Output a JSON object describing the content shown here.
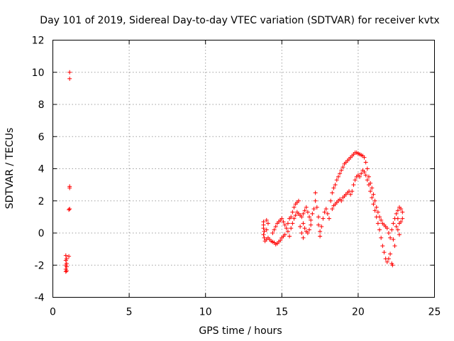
{
  "chart_data": {
    "type": "scatter",
    "title": "Day 101 of 2019, Sidereal Day-to-day VTEC variation (SDTVAR) for receiver kvtx",
    "xlabel": "GPS time / hours",
    "ylabel": "SDTVAR / TECUs",
    "xlim": [
      0,
      25
    ],
    "ylim": [
      -4,
      12
    ],
    "xticks": [
      "0",
      "5",
      "10",
      "15",
      "20",
      "25"
    ],
    "yticks": [
      "-4",
      "-2",
      "0",
      "2",
      "4",
      "6",
      "8",
      "10",
      "12"
    ],
    "grid": true,
    "marker": "+",
    "color": "#ff0000",
    "series": [
      {
        "name": "SDTVAR",
        "points": [
          [
            1.1,
            10.0
          ],
          [
            1.1,
            9.6
          ],
          [
            1.1,
            2.9
          ],
          [
            1.1,
            2.8
          ],
          [
            1.1,
            1.5
          ],
          [
            1.05,
            1.45
          ],
          [
            0.85,
            -1.4
          ],
          [
            1.05,
            -1.45
          ],
          [
            0.9,
            -1.6
          ],
          [
            0.85,
            -1.7
          ],
          [
            0.9,
            -1.9
          ],
          [
            0.85,
            -2.0
          ],
          [
            0.9,
            -2.1
          ],
          [
            0.85,
            -2.25
          ],
          [
            0.9,
            -2.35
          ],
          [
            0.85,
            -2.4
          ],
          [
            13.8,
            0.7
          ],
          [
            13.8,
            0.5
          ],
          [
            13.8,
            0.3
          ],
          [
            13.85,
            0.1
          ],
          [
            13.8,
            -0.1
          ],
          [
            13.85,
            -0.3
          ],
          [
            13.9,
            -0.5
          ],
          [
            14.0,
            0.8
          ],
          [
            14.0,
            0.2
          ],
          [
            14.0,
            -0.4
          ],
          [
            14.1,
            0.6
          ],
          [
            14.1,
            -0.3
          ],
          [
            14.2,
            -0.4
          ],
          [
            14.3,
            -0.5
          ],
          [
            14.4,
            -0.55
          ],
          [
            14.5,
            -0.6
          ],
          [
            14.6,
            -0.7
          ],
          [
            14.7,
            -0.65
          ],
          [
            14.8,
            -0.55
          ],
          [
            14.9,
            -0.45
          ],
          [
            15.0,
            -0.3
          ],
          [
            15.1,
            -0.2
          ],
          [
            15.2,
            -0.1
          ],
          [
            14.4,
            0.0
          ],
          [
            14.5,
            0.2
          ],
          [
            14.6,
            0.4
          ],
          [
            14.7,
            0.6
          ],
          [
            14.8,
            0.7
          ],
          [
            14.9,
            0.8
          ],
          [
            15.0,
            0.9
          ],
          [
            15.1,
            0.7
          ],
          [
            15.2,
            0.5
          ],
          [
            15.3,
            0.3
          ],
          [
            15.4,
            0.6
          ],
          [
            15.5,
            0.9
          ],
          [
            15.6,
            1.0
          ],
          [
            15.7,
            1.3
          ],
          [
            15.8,
            1.6
          ],
          [
            15.9,
            1.8
          ],
          [
            16.0,
            1.9
          ],
          [
            16.1,
            2.0
          ],
          [
            15.4,
            0.1
          ],
          [
            15.5,
            -0.2
          ],
          [
            15.6,
            0.3
          ],
          [
            15.7,
            0.6
          ],
          [
            15.8,
            0.9
          ],
          [
            15.9,
            1.1
          ],
          [
            16.0,
            1.3
          ],
          [
            16.1,
            1.2
          ],
          [
            16.2,
            1.1
          ],
          [
            16.3,
            1.0
          ],
          [
            16.4,
            1.2
          ],
          [
            16.5,
            1.4
          ],
          [
            16.6,
            1.6
          ],
          [
            16.7,
            1.3
          ],
          [
            16.8,
            1.0
          ],
          [
            16.9,
            0.8
          ],
          [
            16.4,
            0.6
          ],
          [
            16.5,
            0.3
          ],
          [
            16.6,
            0.1
          ],
          [
            16.7,
            0.0
          ],
          [
            16.8,
            0.2
          ],
          [
            16.9,
            0.5
          ],
          [
            17.0,
            1.2
          ],
          [
            17.1,
            1.5
          ],
          [
            17.2,
            2.0
          ],
          [
            17.2,
            2.5
          ],
          [
            17.3,
            1.6
          ],
          [
            17.4,
            1.0
          ],
          [
            17.4,
            0.5
          ],
          [
            17.5,
            0.1
          ],
          [
            17.5,
            -0.2
          ],
          [
            17.6,
            0.4
          ],
          [
            17.7,
            0.9
          ],
          [
            17.8,
            1.3
          ],
          [
            17.9,
            1.5
          ],
          [
            18.0,
            1.2
          ],
          [
            18.1,
            0.9
          ],
          [
            16.2,
            0.4
          ],
          [
            16.3,
            0.0
          ],
          [
            16.4,
            -0.3
          ],
          [
            18.2,
            2.0
          ],
          [
            18.3,
            2.5
          ],
          [
            18.4,
            2.8
          ],
          [
            18.5,
            3.0
          ],
          [
            18.6,
            3.3
          ],
          [
            18.7,
            3.5
          ],
          [
            18.8,
            3.7
          ],
          [
            18.9,
            3.9
          ],
          [
            19.0,
            4.1
          ],
          [
            19.1,
            4.3
          ],
          [
            19.2,
            4.4
          ],
          [
            19.3,
            4.5
          ],
          [
            19.4,
            4.6
          ],
          [
            19.5,
            4.7
          ],
          [
            19.6,
            4.8
          ],
          [
            19.7,
            4.9
          ],
          [
            19.8,
            5.0
          ],
          [
            19.9,
            5.0
          ],
          [
            20.0,
            4.95
          ],
          [
            20.1,
            4.9
          ],
          [
            20.2,
            4.85
          ],
          [
            20.3,
            4.8
          ],
          [
            18.3,
            1.5
          ],
          [
            18.4,
            1.7
          ],
          [
            18.5,
            1.8
          ],
          [
            18.6,
            1.9
          ],
          [
            18.7,
            2.0
          ],
          [
            18.8,
            2.1
          ],
          [
            18.9,
            2.0
          ],
          [
            19.0,
            2.2
          ],
          [
            19.1,
            2.3
          ],
          [
            19.2,
            2.4
          ],
          [
            19.3,
            2.5
          ],
          [
            19.4,
            2.6
          ],
          [
            19.5,
            2.4
          ],
          [
            19.6,
            2.6
          ],
          [
            19.7,
            3.0
          ],
          [
            19.8,
            3.3
          ],
          [
            19.9,
            3.5
          ],
          [
            20.0,
            3.6
          ],
          [
            20.1,
            3.5
          ],
          [
            20.2,
            3.7
          ],
          [
            20.3,
            3.9
          ],
          [
            20.4,
            3.8
          ],
          [
            20.5,
            3.6
          ],
          [
            20.6,
            3.3
          ],
          [
            20.7,
            3.0
          ],
          [
            20.8,
            2.6
          ],
          [
            20.9,
            2.2
          ],
          [
            21.0,
            1.8
          ],
          [
            21.1,
            1.4
          ],
          [
            21.2,
            1.0
          ],
          [
            21.3,
            0.6
          ],
          [
            21.4,
            0.2
          ],
          [
            21.5,
            -0.3
          ],
          [
            21.6,
            -0.8
          ],
          [
            21.7,
            -1.2
          ],
          [
            21.8,
            -1.6
          ],
          [
            21.9,
            -1.8
          ],
          [
            22.0,
            -1.6
          ],
          [
            22.1,
            -1.3
          ],
          [
            22.2,
            -1.9
          ],
          [
            22.25,
            -2.0
          ],
          [
            20.4,
            4.7
          ],
          [
            20.5,
            4.4
          ],
          [
            20.6,
            4.0
          ],
          [
            20.7,
            3.5
          ],
          [
            20.8,
            3.1
          ],
          [
            20.9,
            2.8
          ],
          [
            21.0,
            2.4
          ],
          [
            21.1,
            2.0
          ],
          [
            21.2,
            1.6
          ],
          [
            21.3,
            1.3
          ],
          [
            21.4,
            1.0
          ],
          [
            21.5,
            0.8
          ],
          [
            21.6,
            0.6
          ],
          [
            21.7,
            0.5
          ],
          [
            21.8,
            0.4
          ],
          [
            21.9,
            0.3
          ],
          [
            22.0,
            0.0
          ],
          [
            22.1,
            -0.3
          ],
          [
            22.2,
            0.2
          ],
          [
            22.3,
            0.6
          ],
          [
            22.4,
            0.9
          ],
          [
            22.5,
            1.2
          ],
          [
            22.6,
            1.4
          ],
          [
            22.7,
            1.6
          ],
          [
            22.8,
            1.5
          ],
          [
            22.9,
            1.3
          ],
          [
            22.6,
            0.9
          ],
          [
            22.7,
            0.6
          ],
          [
            22.8,
            0.7
          ],
          [
            22.9,
            0.9
          ],
          [
            22.5,
            0.4
          ],
          [
            22.6,
            0.2
          ],
          [
            22.7,
            -0.1
          ],
          [
            22.3,
            -0.4
          ],
          [
            22.4,
            -0.8
          ]
        ]
      }
    ]
  }
}
